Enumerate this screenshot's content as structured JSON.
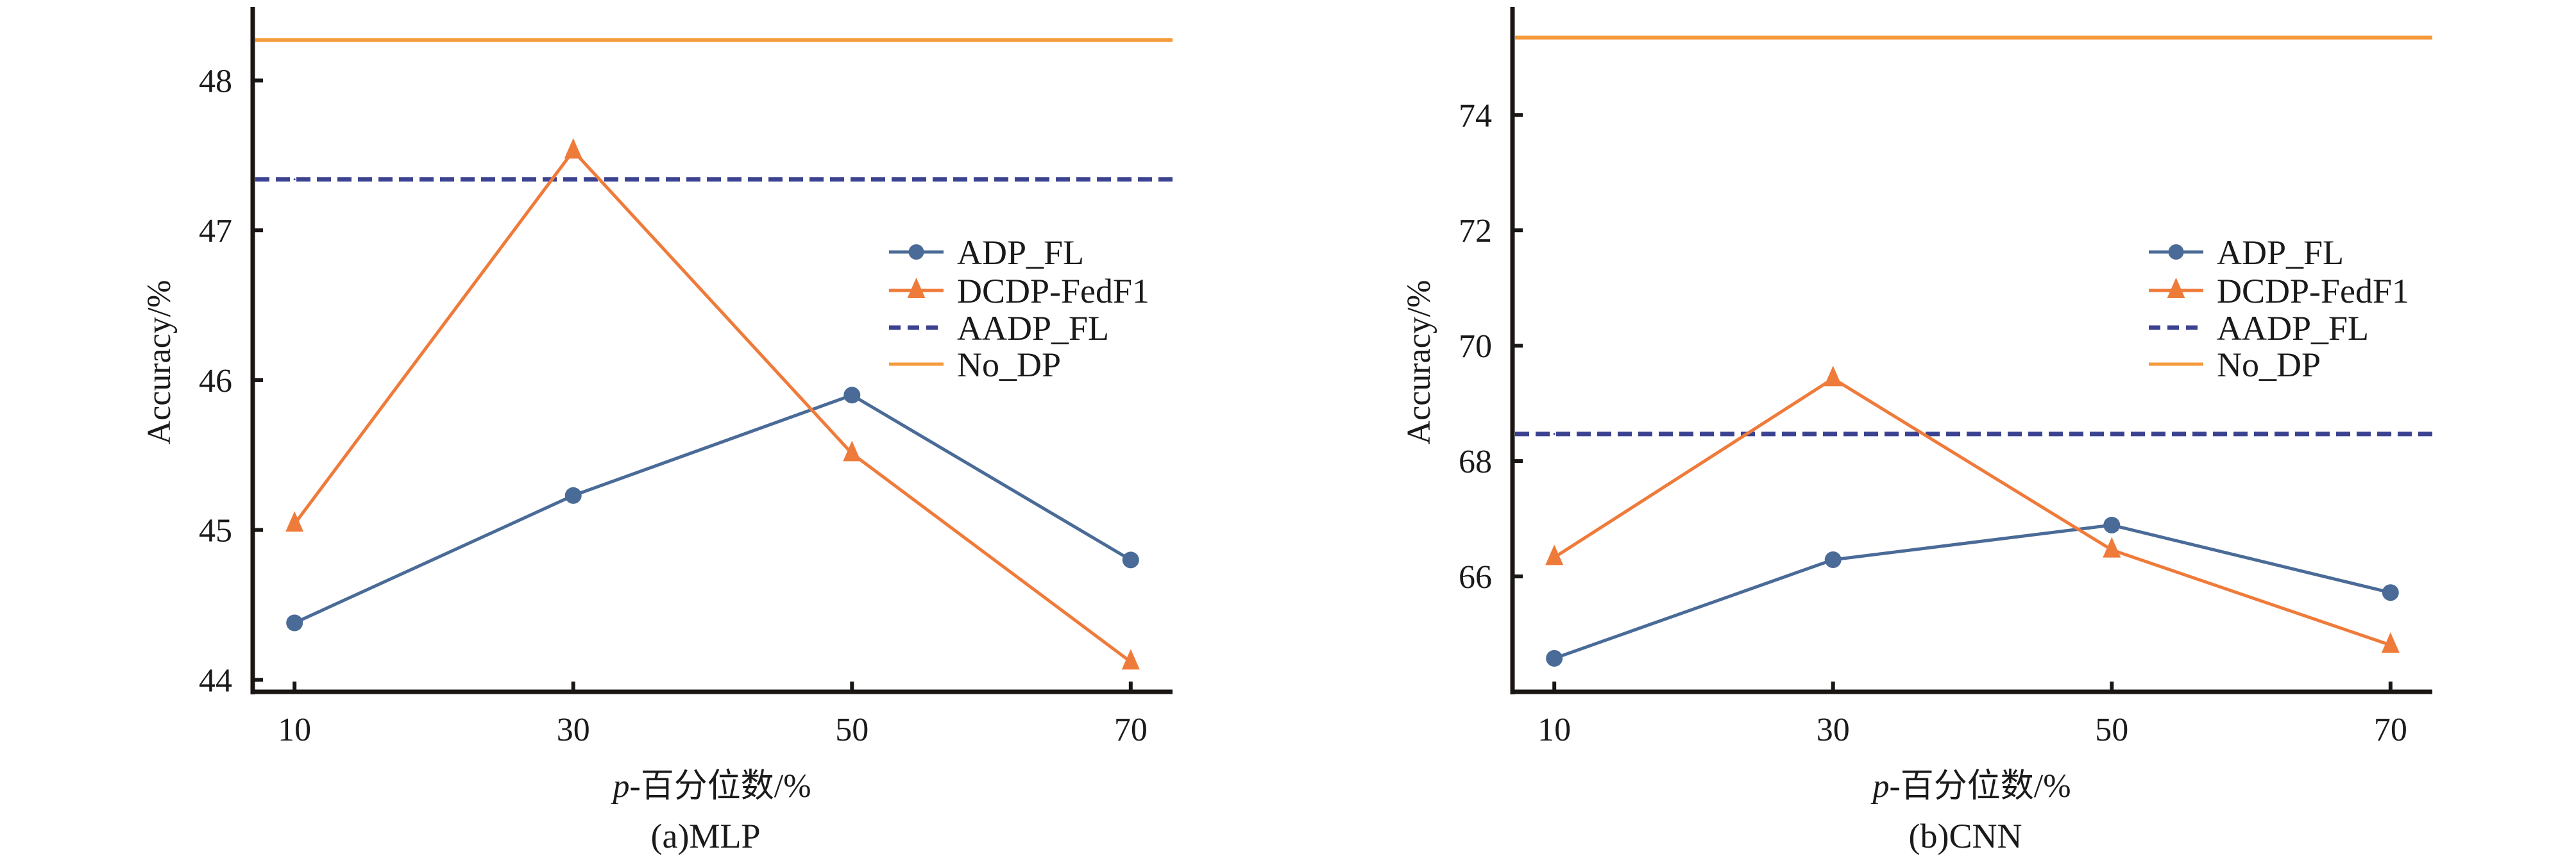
{
  "colors": {
    "adp_fl": "#4a6b97",
    "dcdp_fedf1": "#ef7b3b",
    "aadp_fl": "#3b4391",
    "no_dp": "#f49b3c",
    "axis": "#1a1614"
  },
  "chart_data": [
    {
      "type": "line",
      "caption": "(a)MLP",
      "xlabel": "p-百分位数/%",
      "xlabel_italic_prefix": "p",
      "xlabel_rest": "-百分位数/%",
      "ylabel": "Accuracy/%",
      "x": [
        10,
        30,
        50,
        70
      ],
      "x_tick_labels": [
        "10",
        "30",
        "50",
        "70"
      ],
      "xlim": [
        7,
        73
      ],
      "ylim": [
        43.92,
        48.49
      ],
      "y_ticks": [
        44,
        45,
        46,
        47,
        48
      ],
      "y_tick_labels": [
        "44",
        "45",
        "46",
        "47",
        "48"
      ],
      "grid": false,
      "legend_position": "center-right",
      "series": [
        {
          "name": "ADP_FL",
          "key": "adp_fl",
          "marker": "circle",
          "style": "solid",
          "values": [
            44.38,
            45.23,
            45.9,
            44.8
          ]
        },
        {
          "name": "DCDP-FedF1",
          "key": "dcdp_fedf1",
          "marker": "triangle",
          "style": "solid",
          "values": [
            45.04,
            47.53,
            45.51,
            44.12
          ]
        },
        {
          "name": "AADP_FL",
          "key": "aadp_fl",
          "marker": "none",
          "style": "dashed",
          "values": [
            47.34,
            47.34,
            47.34,
            47.34
          ]
        },
        {
          "name": "No_DP",
          "key": "no_dp",
          "marker": "none",
          "style": "solid",
          "values": [
            48.27,
            48.27,
            48.27,
            48.27
          ]
        }
      ]
    },
    {
      "type": "line",
      "caption": "(b)CNN",
      "xlabel": "p-百分位数/%",
      "xlabel_italic_prefix": "p",
      "xlabel_rest": "-百分位数/%",
      "ylabel": "Accuracy/%",
      "x": [
        10,
        30,
        50,
        70
      ],
      "x_tick_labels": [
        "10",
        "30",
        "50",
        "70"
      ],
      "xlim": [
        7,
        73
      ],
      "ylim": [
        64.0,
        75.87
      ],
      "y_ticks": [
        66,
        68,
        70,
        72,
        74
      ],
      "y_tick_labels": [
        "66",
        "68",
        "70",
        "72",
        "74"
      ],
      "grid": false,
      "legend_position": "center-right",
      "series": [
        {
          "name": "ADP_FL",
          "key": "adp_fl",
          "marker": "circle",
          "style": "solid",
          "values": [
            64.58,
            66.29,
            66.89,
            65.72
          ]
        },
        {
          "name": "DCDP-FedF1",
          "key": "dcdp_fedf1",
          "marker": "triangle",
          "style": "solid",
          "values": [
            66.33,
            69.43,
            66.46,
            64.81
          ]
        },
        {
          "name": "AADP_FL",
          "key": "aadp_fl",
          "marker": "none",
          "style": "dashed",
          "values": [
            68.47,
            68.47,
            68.47,
            68.47
          ]
        },
        {
          "name": "No_DP",
          "key": "no_dp",
          "marker": "none",
          "style": "solid",
          "values": [
            75.34,
            75.34,
            75.34,
            75.34
          ]
        }
      ]
    }
  ]
}
